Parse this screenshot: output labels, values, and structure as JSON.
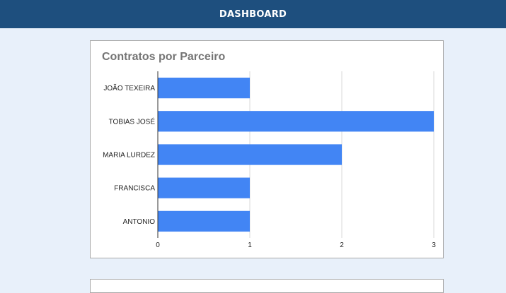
{
  "header": {
    "title": "DASHBOARD"
  },
  "colors": {
    "header_bg": "#1e4f7e",
    "page_bg": "#e8f0fa",
    "bar": "#4285f4"
  },
  "chart_data": {
    "type": "bar",
    "orientation": "horizontal",
    "title": "Contratos por Parceiro",
    "categories": [
      "JOÃO TEXEIRA",
      "TOBIAS JOSÉ",
      "MARIA LURDEZ",
      "FRANCISCA",
      "ANTONIO"
    ],
    "values": [
      1,
      3,
      2,
      1,
      1
    ],
    "xlim": [
      0,
      3
    ],
    "xticks": [
      "0",
      "1",
      "2",
      "3"
    ],
    "grid": true,
    "legend": "none"
  }
}
